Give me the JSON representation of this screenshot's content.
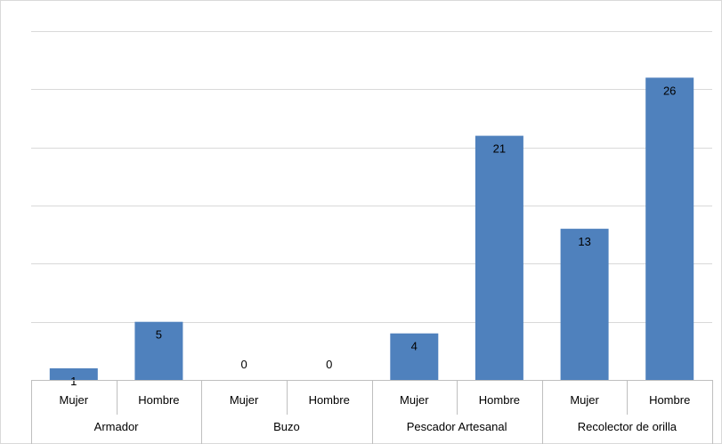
{
  "chart_data": {
    "type": "bar",
    "groups": [
      "Armador",
      "Buzo",
      "Pescador Artesanal",
      "Recolector de orilla"
    ],
    "subcategories": [
      "Mujer",
      "Hombre"
    ],
    "values": [
      [
        1,
        5
      ],
      [
        0,
        0
      ],
      [
        4,
        21
      ],
      [
        13,
        26
      ]
    ],
    "ylim": [
      0,
      30
    ],
    "grid": true,
    "bar_color": "#4f81bd",
    "data_labels": true
  }
}
